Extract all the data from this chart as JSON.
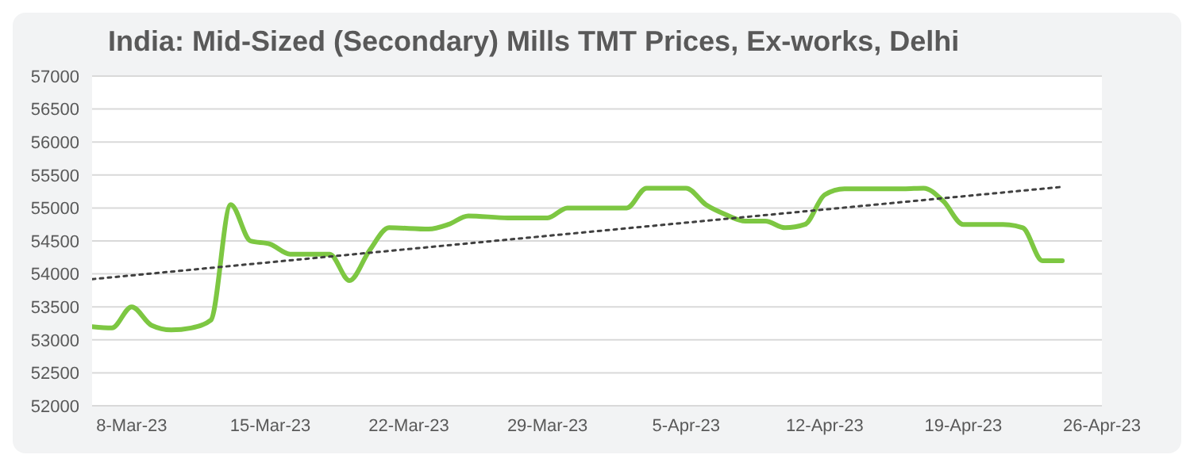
{
  "chart_data": {
    "type": "line",
    "title": "India: Mid-Sized (Secondary) Mills TMT Prices, Ex-works, Delhi",
    "series": [
      {
        "color": "#7dc742",
        "line_style": "solid",
        "x": [
          "--03-06",
          "--03-07",
          "--03-08",
          "--03-09",
          "--03-10",
          "--03-11",
          "--03-12",
          "--03-13",
          "--03-14",
          "--03-15",
          "--03-16",
          "--03-18",
          "--03-19",
          "--03-20",
          "--03-21",
          "--03-23",
          "--03-24",
          "--03-25",
          "--03-27",
          "--03-29",
          "--03-30",
          "--03-31",
          "--04-02",
          "--04-03",
          "--04-05",
          "--04-06",
          "--04-07",
          "--04-08",
          "--04-09",
          "--04-10",
          "--04-11",
          "--04-12",
          "--04-13",
          "--04-16",
          "--04-17",
          "--04-18",
          "--04-19",
          "--04-21",
          "--04-22",
          "--04-23",
          "--04-24"
        ],
        "values": [
          53200,
          53180,
          53500,
          53220,
          53150,
          53180,
          53300,
          55050,
          54500,
          54450,
          54300,
          54300,
          53900,
          54350,
          54700,
          54680,
          54750,
          54880,
          54850,
          54850,
          55000,
          55000,
          55000,
          55300,
          55300,
          55050,
          54900,
          54800,
          54800,
          54700,
          54750,
          55200,
          55290,
          55290,
          55300,
          55100,
          54750,
          54750,
          54700,
          54200,
          54200
        ]
      },
      {
        "color": "#404040",
        "line_style": "dotted",
        "x": [
          "--03-06",
          "--04-24"
        ],
        "values": [
          53920,
          55320
        ]
      }
    ],
    "xlim": [
      "--03-06",
      "--04-26"
    ],
    "xticks": [
      {
        "value": "--03-08",
        "label": "8-Mar-23"
      },
      {
        "value": "--03-15",
        "label": "15-Mar-23"
      },
      {
        "value": "--03-22",
        "label": "22-Mar-23"
      },
      {
        "value": "--03-29",
        "label": "29-Mar-23"
      },
      {
        "value": "--04-05",
        "label": "5-Apr-23"
      },
      {
        "value": "--04-12",
        "label": "12-Apr-23"
      },
      {
        "value": "--04-19",
        "label": "19-Apr-23"
      },
      {
        "value": "--04-26",
        "label": "26-Apr-23"
      }
    ],
    "ylim": [
      52000,
      57000
    ],
    "yticks": [
      52000,
      52500,
      53000,
      53500,
      54000,
      54500,
      55000,
      55500,
      56000,
      56500,
      57000
    ],
    "grid": "y",
    "marker": "none"
  }
}
